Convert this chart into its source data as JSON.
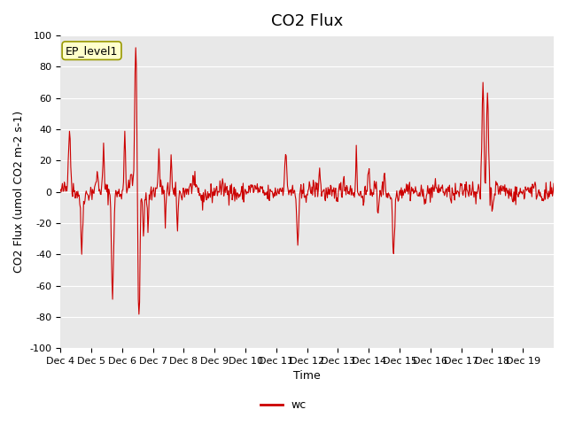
{
  "title": "CO2 Flux",
  "xlabel": "Time",
  "ylabel": "CO2 Flux (umol CO2 m-2 s-1)",
  "ylim": [
    -100,
    100
  ],
  "yticks": [
    -100,
    -80,
    -60,
    -40,
    -20,
    0,
    20,
    40,
    60,
    80,
    100
  ],
  "line_color": "#cc0000",
  "legend_label": "wc",
  "annotation_text": "EP_level1",
  "background_color": "#e8e8e8",
  "figure_background": "#ffffff",
  "xtick_labels": [
    "Dec 4",
    "Dec 5",
    "Dec 6",
    "Dec 7",
    "Dec 8",
    "Dec 9",
    "Dec 10",
    "Dec 11",
    "Dec 12",
    "Dec 13",
    "Dec 14",
    "Dec 15",
    "Dec 16",
    "Dec 17",
    "Dec 18",
    "Dec 19"
  ],
  "title_fontsize": 13,
  "axis_label_fontsize": 9,
  "tick_fontsize": 8
}
